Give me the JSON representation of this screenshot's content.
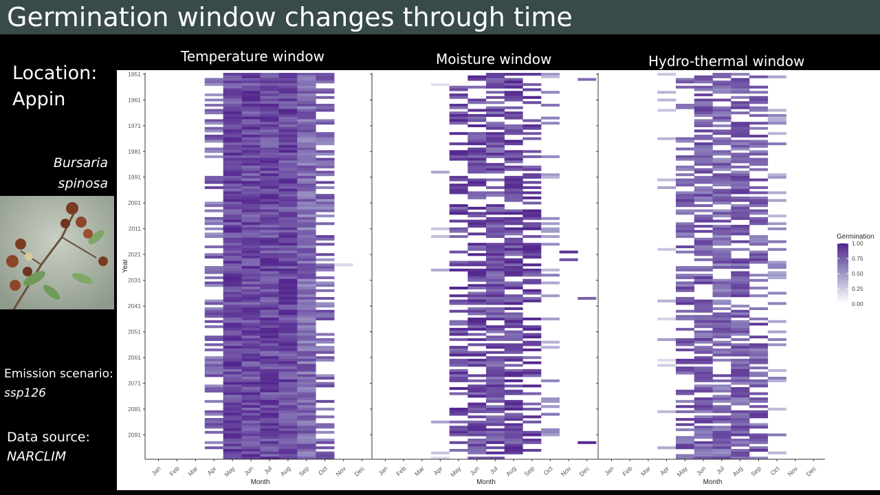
{
  "slide": {
    "title": "Germination window changes through time",
    "location_label": "Location:",
    "location_value": "Appin",
    "species_line1": "Bursaria",
    "species_line2": "spinosa",
    "emission_label": "Emission scenario:",
    "emission_value": "ssp126",
    "source_label": "Data source:",
    "source_value": "NARCLIM"
  },
  "colors": {
    "title_bar": "#394a4a",
    "background": "#000000",
    "plot_panel": "#ffffff",
    "fill_high": "#54278f",
    "fill_low": "#ffffff"
  },
  "chart_data": [
    {
      "type": "heatmap",
      "title": "Temperature window",
      "xlabel": "Month",
      "ylabel": "Year",
      "x": [
        "Jan",
        "Feb",
        "Mar",
        "Apr",
        "May",
        "Jun",
        "Jul",
        "Aug",
        "Sep",
        "Oct",
        "Nov",
        "Dec"
      ],
      "y_ticks": [
        1951,
        1961,
        1971,
        1981,
        1991,
        2001,
        2011,
        2021,
        2031,
        2041,
        2051,
        2061,
        2071,
        2081,
        2091
      ],
      "y_range": [
        1951,
        2100
      ],
      "approx_value_by_month": [
        0,
        0,
        0,
        0.7,
        0.85,
        0.85,
        0.85,
        0.85,
        0.7,
        0.7,
        0.2,
        0
      ],
      "approx_fill_fraction_by_month": [
        0,
        0,
        0,
        0.5,
        1,
        1,
        1,
        1,
        1,
        0.45,
        0.005,
        0
      ]
    },
    {
      "type": "heatmap",
      "title": "Moisture window",
      "xlabel": "Month",
      "ylabel": "",
      "x": [
        "Jan",
        "Feb",
        "Mar",
        "Apr",
        "May",
        "Jun",
        "Jul",
        "Aug",
        "Sep",
        "Oct",
        "Nov",
        "Dec"
      ],
      "y_ticks": [],
      "y_range": [
        1951,
        2100
      ],
      "approx_value_by_month": [
        0,
        0,
        0,
        0.3,
        0.85,
        0.85,
        0.8,
        0.85,
        0.85,
        0.5,
        0.85,
        0.85
      ],
      "approx_fill_fraction_by_month": [
        0,
        0,
        0,
        0.05,
        0.45,
        0.7,
        0.75,
        0.75,
        0.5,
        0.22,
        0.02,
        0.02
      ]
    },
    {
      "type": "heatmap",
      "title": "Hydro-thermal window",
      "xlabel": "Month",
      "ylabel": "",
      "x": [
        "Jan",
        "Feb",
        "Mar",
        "Apr",
        "May",
        "Jun",
        "Jul",
        "Aug",
        "Sep",
        "Oct",
        "Nov",
        "Dec"
      ],
      "y_ticks": [],
      "y_range": [
        1951,
        2100
      ],
      "approx_value_by_month": [
        0,
        0,
        0,
        0.3,
        0.75,
        0.75,
        0.7,
        0.75,
        0.75,
        0.5,
        0,
        0
      ],
      "approx_fill_fraction_by_month": [
        0,
        0,
        0,
        0.05,
        0.45,
        0.7,
        0.75,
        0.75,
        0.5,
        0.22,
        0,
        0
      ]
    }
  ],
  "legend": {
    "title": "Germination",
    "ticks": [
      "1.00",
      "0.75",
      "0.50",
      "0.25",
      "0.00"
    ],
    "range": [
      0,
      1
    ]
  }
}
